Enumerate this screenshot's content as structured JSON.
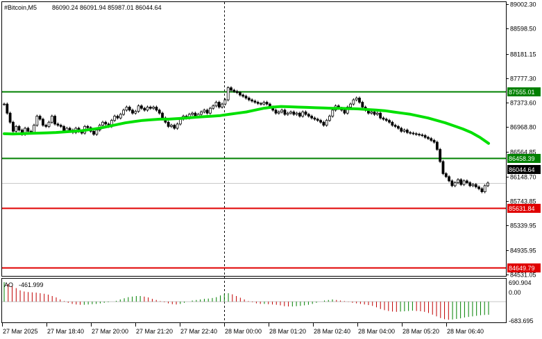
{
  "header": {
    "symbol_timeframe": "#Bitcoin,M5",
    "ohlc": "86090.24 86091.94 85987.01 86044.64"
  },
  "indicator": {
    "name": "AO",
    "value": "-461.999",
    "scale_top": "690.904",
    "scale_zero": "0.00",
    "scale_bottom": "-683.695"
  },
  "price_axis": {
    "ticks": [
      "89002.30",
      "88598.50",
      "88181.15",
      "87777.30",
      "87373.60",
      "86968.80",
      "86564.85",
      "86148.70",
      "85743.85",
      "85339.95",
      "84935.95",
      "84531.05"
    ]
  },
  "levels": [
    {
      "price": 87555.01,
      "label": "87555.01",
      "color": "#008000"
    },
    {
      "price": 86458.39,
      "label": "86458.39",
      "color": "#008000"
    },
    {
      "price": 85631.84,
      "label": "85631.84",
      "color": "#e00000"
    },
    {
      "price": 84649.79,
      "label": "84649.79",
      "color": "#e00000"
    }
  ],
  "current_price": {
    "price": 86044.64,
    "label": "86044.64"
  },
  "time_axis": {
    "labels": [
      "27 Mar 2025",
      "27 Mar 18:40",
      "27 Mar 20:00",
      "27 Mar 21:20",
      "27 Mar 22:40",
      "28 Mar 00:00",
      "28 Mar 01:20",
      "28 Mar 02:40",
      "28 Mar 04:00",
      "28 Mar 05:20",
      "28 Mar 06:40"
    ]
  },
  "colors": {
    "candle": "#000000",
    "moving_average": "#00e000",
    "ao_up": "#008000",
    "ao_down": "#c00000",
    "grid": "#c8c8c8"
  },
  "chart_data": {
    "type": "line",
    "series": [
      {
        "close": [
          87350,
          87200,
          87050,
          86900,
          86980,
          86920,
          86850,
          86950,
          86900,
          86880,
          87000,
          87150,
          87100,
          87000,
          86980,
          87050,
          87150,
          87020,
          87000,
          86980,
          86900,
          86950,
          86920,
          86880,
          86950,
          86900,
          86870,
          86980,
          86960,
          86900,
          86850,
          86920,
          87000,
          87050,
          87020,
          86980,
          87080,
          87150,
          87120,
          87180,
          87250,
          87300,
          87250,
          87200,
          87230,
          87320,
          87280,
          87250,
          87300,
          87280,
          87300,
          87250,
          87200,
          87120,
          87050,
          86980,
          87000,
          86950,
          87020,
          87100,
          87150,
          87120,
          87180,
          87200,
          87150,
          87180,
          87220,
          87250,
          87200,
          87280,
          87320,
          87380,
          87300,
          87350,
          87420,
          87620,
          87580,
          87560,
          87540,
          87500,
          87480,
          87450,
          87420,
          87400,
          87380,
          87360,
          87350,
          87380,
          87350,
          87300,
          87250,
          87200,
          87220,
          87250,
          87180,
          87200,
          87220,
          87180,
          87200,
          87150,
          87220,
          87180,
          87150,
          87120,
          87100,
          87080,
          87050,
          87000,
          87080,
          87150,
          87250,
          87320,
          87280,
          87250,
          87200,
          87300,
          87350,
          87420,
          87450,
          87380,
          87300,
          87250,
          87200,
          87220,
          87180,
          87200,
          87120,
          87100,
          87080,
          87050,
          87000,
          86980,
          86950,
          86900,
          86920,
          86880,
          86870,
          86860,
          86850,
          86840,
          86830,
          86800,
          86780,
          86750,
          86720,
          86600,
          86400,
          86200,
          86150,
          86080,
          86000,
          86050,
          86100,
          86020,
          86080,
          86050,
          86000,
          86020,
          85980,
          85950,
          85900,
          86000,
          86044.64
        ],
        "ma": [
          86860,
          86855,
          86860,
          86865,
          86870,
          86875,
          86880,
          86890,
          86900,
          86910,
          86930,
          86950,
          86980,
          87010,
          87040,
          87060,
          87080,
          87090,
          87100,
          87100,
          87110,
          87120,
          87130,
          87140,
          87150,
          87160,
          87180,
          87200,
          87220,
          87250,
          87280,
          87300,
          87310,
          87305,
          87300,
          87295,
          87290,
          87285,
          87280,
          87280,
          87275,
          87270,
          87260,
          87250,
          87240,
          87220,
          87200,
          87180,
          87150,
          87120,
          87080,
          87040,
          86990,
          86940,
          86880,
          86800,
          86700
        ]
      }
    ]
  },
  "ao_data": [
    690,
    620,
    560,
    480,
    400,
    360,
    340,
    330,
    320,
    300,
    280,
    250,
    200,
    150,
    80,
    20,
    -40,
    -80,
    -100,
    -110,
    -110,
    -100,
    -90,
    -80,
    -60,
    -40,
    -20,
    0,
    30,
    80,
    120,
    160,
    180,
    200,
    200,
    180,
    150,
    100,
    60,
    20,
    -20,
    -60,
    -90,
    -100,
    -80,
    -40,
    0,
    40,
    60,
    80,
    100,
    110,
    130,
    160,
    220,
    280,
    300,
    260,
    200,
    140,
    80,
    20,
    -20,
    -60,
    -80,
    -80,
    -90,
    -100,
    -110,
    -130,
    -160,
    -170,
    -170,
    -160,
    -150,
    -130,
    -110,
    -80,
    -40,
    0,
    40,
    60,
    80,
    60,
    40,
    20,
    -10,
    -40,
    -60,
    -80,
    -100,
    -120,
    -150,
    -200,
    -260,
    -300,
    -330,
    -350,
    -360,
    -350,
    -340,
    -330,
    -320,
    -330,
    -340,
    -360,
    -400,
    -460,
    -520,
    -580,
    -620,
    -640,
    -630,
    -610,
    -590,
    -560,
    -540,
    -520,
    -500,
    -480,
    -470,
    -462
  ]
}
